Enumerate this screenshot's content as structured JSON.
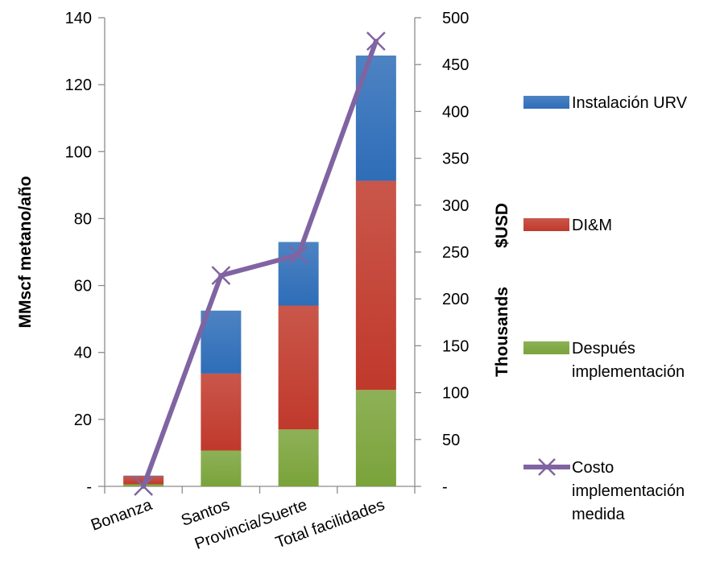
{
  "chart_data": {
    "type": "bar",
    "stacked": true,
    "categories": [
      "Bonanza",
      "Santos",
      "Provincia/Suerte",
      "Total facilidades"
    ],
    "series": [
      {
        "name": "Después implementación",
        "axis": "left",
        "color": "#7aa33a",
        "values": [
          0.6,
          10.7,
          17.0,
          28.8
        ]
      },
      {
        "name": "DI&M",
        "axis": "left",
        "color": "#c0392b",
        "values": [
          2.4,
          23.0,
          37.0,
          62.5
        ]
      },
      {
        "name": "Instalación URV",
        "axis": "left",
        "color": "#2e6db8",
        "values": [
          0.2,
          18.8,
          19.0,
          37.4
        ]
      }
    ],
    "line_series": {
      "name": "Costo implementación medida",
      "axis": "right",
      "color": "#8064a2",
      "marker": "x",
      "values": [
        0,
        225,
        247,
        475
      ]
    },
    "ylabel": "MMscf metano/año",
    "y2label_top": "$USD",
    "y2label_bottom": "Thousands",
    "ylim": [
      0,
      140
    ],
    "y2lim": [
      0,
      500
    ],
    "yticks": [
      "-",
      "20",
      "40",
      "60",
      "80",
      "100",
      "120",
      "140"
    ],
    "y2ticks": [
      "-",
      "50",
      "100",
      "150",
      "200",
      "250",
      "300",
      "350",
      "400",
      "450",
      "500"
    ],
    "legend_position": "right",
    "legend": [
      {
        "lines": [
          "Instalación URV"
        ],
        "kind": "bar",
        "color": "#2e6db8"
      },
      {
        "lines": [
          "DI&M"
        ],
        "kind": "bar",
        "color": "#c0392b"
      },
      {
        "lines": [
          "Después",
          "implementación"
        ],
        "kind": "bar",
        "color": "#7aa33a"
      },
      {
        "lines": [
          "Costo",
          "implementación",
          "medida"
        ],
        "kind": "line",
        "color": "#8064a2"
      }
    ],
    "grid": false
  }
}
